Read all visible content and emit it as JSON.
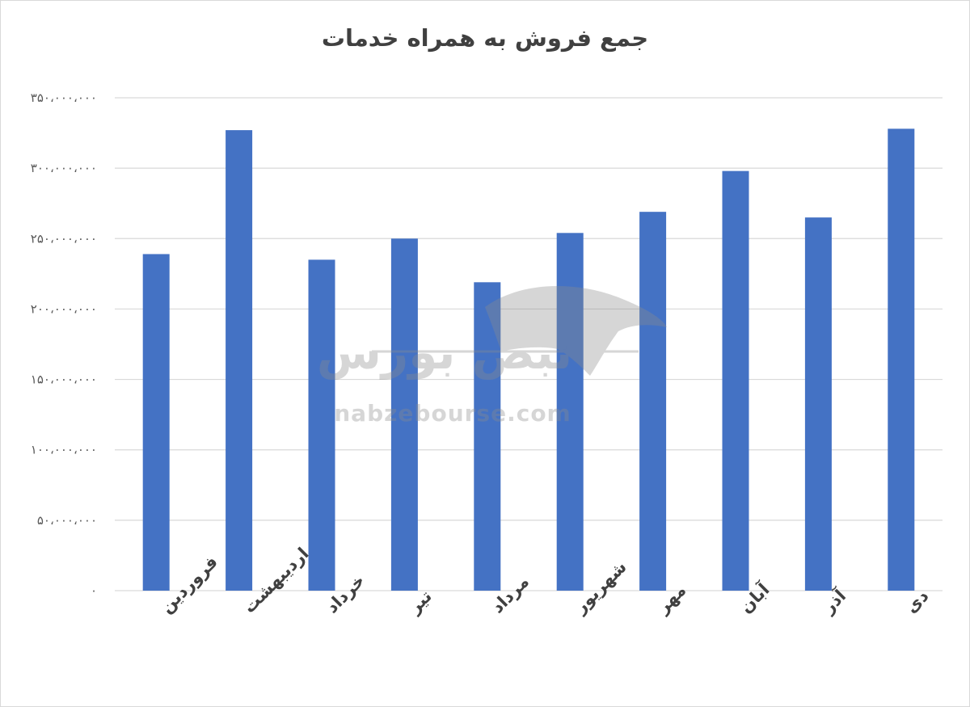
{
  "chart_data": {
    "type": "bar",
    "title": "جمع فروش به همراه خدمات",
    "categories": [
      "فروردین",
      "اردیبهشت",
      "خرداد",
      "تیر",
      "مرداد",
      "شهریور",
      "مهر",
      "آبان",
      "آذر",
      "دی"
    ],
    "values": [
      239000000,
      327000000,
      235000000,
      250000000,
      219000000,
      254000000,
      269000000,
      298000000,
      265000000,
      328000000
    ],
    "ylim": [
      0,
      350000000
    ],
    "yticks": [
      "۰",
      "۵۰،۰۰۰،۰۰۰",
      "۱۰۰،۰۰۰،۰۰۰",
      "۱۵۰،۰۰۰،۰۰۰",
      "۲۰۰،۰۰۰،۰۰۰",
      "۲۵۰،۰۰۰،۰۰۰",
      "۳۰۰،۰۰۰،۰۰۰",
      "۳۵۰،۰۰۰،۰۰۰"
    ],
    "ytick_values": [
      0,
      50000000,
      100000000,
      150000000,
      200000000,
      250000000,
      300000000,
      350000000
    ],
    "grid": true,
    "legend": "none",
    "bar_color": "#4472c4"
  },
  "watermark": {
    "logo_text": "نبض بورس",
    "url": "nabzebourse.com"
  }
}
